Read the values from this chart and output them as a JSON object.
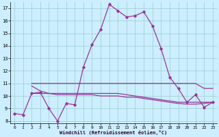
{
  "xlabel": "Windchill (Refroidissement éolien,°C)",
  "bg_color": "#cceeff",
  "grid_color": "#99cccc",
  "line_color": "#993399",
  "xlim": [
    -0.5,
    23.5
  ],
  "ylim": [
    7.8,
    17.5
  ],
  "yticks": [
    8,
    9,
    10,
    11,
    12,
    13,
    14,
    15,
    16,
    17
  ],
  "xticks": [
    0,
    1,
    2,
    3,
    4,
    5,
    6,
    7,
    8,
    9,
    10,
    11,
    12,
    13,
    14,
    15,
    16,
    17,
    18,
    19,
    20,
    21,
    22,
    23
  ],
  "curve1_x": [
    0,
    1,
    2,
    3,
    4,
    5,
    6,
    7,
    8,
    9,
    10,
    11,
    12,
    13,
    14,
    15,
    16,
    17,
    18,
    19,
    20,
    21,
    22,
    23
  ],
  "curve1_y": [
    8.6,
    8.5,
    10.2,
    10.3,
    9.0,
    8.0,
    9.4,
    9.3,
    12.3,
    14.1,
    15.3,
    17.3,
    16.8,
    16.3,
    16.4,
    16.7,
    15.6,
    13.8,
    11.5,
    10.6,
    9.5,
    10.1,
    9.1,
    9.5
  ],
  "curve2_x": [
    2,
    3,
    4,
    5,
    6,
    7,
    8,
    9,
    10,
    11,
    12,
    13,
    14,
    15,
    16,
    17,
    18,
    19,
    20,
    21,
    22,
    23
  ],
  "curve2_y": [
    11.0,
    11.0,
    11.0,
    11.0,
    11.0,
    11.0,
    11.0,
    11.0,
    11.0,
    11.0,
    11.0,
    11.0,
    11.0,
    11.0,
    11.0,
    11.0,
    11.0,
    11.0,
    11.0,
    11.0,
    10.6,
    10.6
  ],
  "curve3_x": [
    2,
    3,
    4,
    5,
    6,
    7,
    8,
    9,
    10,
    11,
    12,
    13,
    14,
    15,
    16,
    17,
    18,
    19,
    20,
    21,
    22,
    23
  ],
  "curve3_y": [
    10.2,
    10.2,
    10.2,
    10.2,
    10.2,
    10.2,
    10.2,
    10.2,
    10.2,
    10.2,
    10.2,
    10.1,
    10.0,
    9.9,
    9.8,
    9.7,
    9.6,
    9.5,
    9.5,
    9.5,
    9.5,
    9.5
  ],
  "curve4_x": [
    2,
    3,
    4,
    5,
    6,
    7,
    8,
    9,
    10,
    11,
    12,
    13,
    14,
    15,
    16,
    17,
    18,
    19,
    20,
    21,
    22,
    23
  ],
  "curve4_y": [
    10.8,
    10.4,
    10.2,
    10.1,
    10.1,
    10.1,
    10.1,
    10.1,
    10.0,
    10.0,
    10.0,
    9.9,
    9.9,
    9.8,
    9.7,
    9.6,
    9.5,
    9.4,
    9.35,
    9.35,
    9.4,
    9.5
  ]
}
